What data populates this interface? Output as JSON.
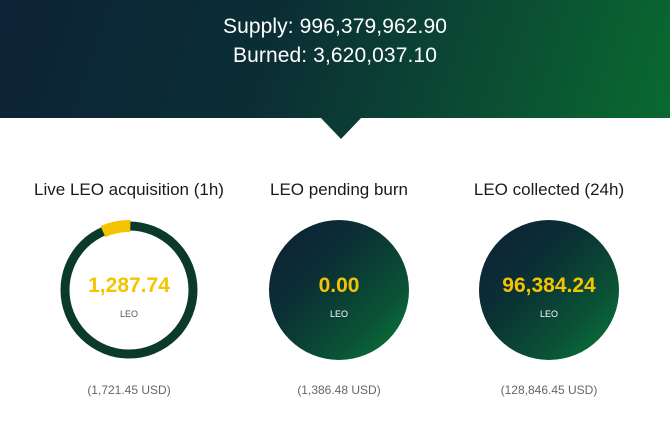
{
  "header": {
    "supply_line": "Supply: 996,379,962.90",
    "burned_line": "Burned: 3,620,037.10"
  },
  "stats": [
    {
      "title": "Live LEO acquisition (1h)",
      "value": "1,287.74",
      "unit": "LEO",
      "usd": "(1,721.45 USD)"
    },
    {
      "title": "LEO pending burn",
      "value": "0.00",
      "unit": "LEO",
      "usd": "(1,386.48 USD)"
    },
    {
      "title": "LEO collected (24h)",
      "value": "96,384.24",
      "unit": "LEO",
      "usd": "(128,846.45 USD)"
    }
  ],
  "colors": {
    "accent_yellow": "#f5c400",
    "ring_green": "#0b3a2c",
    "gradient_dark": "#0c2236",
    "gradient_green": "#096a30"
  },
  "acquisition_progress_fraction": 0.07
}
